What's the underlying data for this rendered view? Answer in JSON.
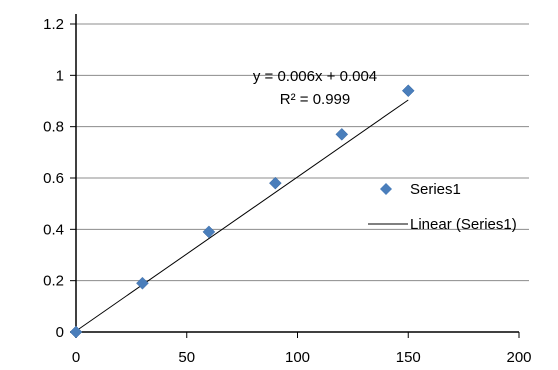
{
  "chart_data": {
    "type": "scatter",
    "title": "",
    "xlabel": "",
    "ylabel": "",
    "xlim": [
      0,
      200
    ],
    "ylim": [
      0,
      1.2
    ],
    "grid": "horizontal",
    "legend_position": "right",
    "x_ticks": [
      "0",
      "50",
      "100",
      "150",
      "200"
    ],
    "y_ticks": [
      "0",
      "0.2",
      "0.4",
      "0.6",
      "0.8",
      "1",
      "1.2"
    ],
    "series": [
      {
        "name": "Series1",
        "marker": "diamond",
        "color": "#4a7ebb",
        "x": [
          0,
          30,
          60,
          90,
          120,
          150
        ],
        "y": [
          0,
          0.19,
          0.39,
          0.58,
          0.77,
          0.94
        ]
      }
    ],
    "trendline": {
      "name": "Linear (Series1)",
      "type": "linear",
      "slope": 0.006,
      "intercept": 0.004,
      "x_range": [
        0,
        150
      ],
      "color": "#000000",
      "equation_text": "y = 0.006x + 0.004",
      "r2_text": "R² = 0.999"
    }
  }
}
